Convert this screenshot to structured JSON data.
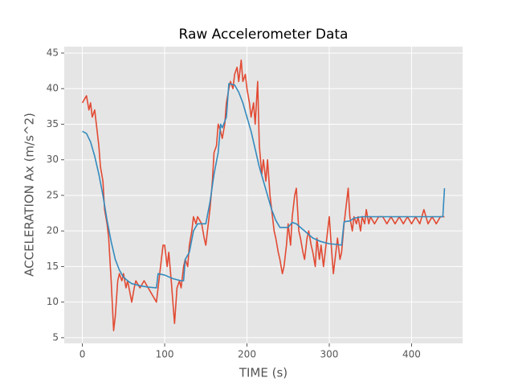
{
  "chart_data": {
    "type": "line",
    "title": "Raw Accelerometer Data",
    "x_label": "TIME (s)",
    "y_label": "ACCELERATION Ax (m/s^2)",
    "xlim": [
      -22,
      462
    ],
    "ylim": [
      4.2,
      45.9
    ],
    "xticks": [
      0,
      100,
      200,
      300,
      400
    ],
    "yticks": [
      5,
      10,
      15,
      20,
      25,
      30,
      35,
      40,
      45
    ],
    "grid": true,
    "background": "#E5E5E5",
    "series": [
      {
        "color": "#E24A33",
        "x": [
          0,
          5,
          8,
          10,
          12,
          15,
          18,
          20,
          22,
          25,
          27,
          30,
          32,
          35,
          38,
          40,
          43,
          45,
          48,
          50,
          53,
          55,
          60,
          63,
          65,
          70,
          75,
          80,
          85,
          90,
          95,
          98,
          100,
          103,
          105,
          108,
          110,
          112,
          115,
          118,
          120,
          123,
          125,
          128,
          130,
          133,
          135,
          138,
          140,
          145,
          148,
          150,
          155,
          158,
          160,
          163,
          165,
          168,
          170,
          173,
          175,
          178,
          180,
          183,
          185,
          188,
          190,
          193,
          195,
          198,
          200,
          203,
          205,
          208,
          210,
          213,
          215,
          218,
          220,
          223,
          225,
          228,
          230,
          233,
          235,
          238,
          240,
          243,
          245,
          248,
          250,
          253,
          255,
          258,
          260,
          263,
          265,
          268,
          270,
          273,
          275,
          278,
          280,
          283,
          285,
          288,
          290,
          293,
          295,
          298,
          300,
          303,
          305,
          308,
          310,
          313,
          315,
          318,
          320,
          323,
          325,
          328,
          330,
          333,
          335,
          338,
          340,
          343,
          345,
          348,
          350,
          355,
          360,
          365,
          370,
          375,
          380,
          385,
          390,
          395,
          400,
          405,
          410,
          415,
          420,
          425,
          430,
          435,
          440
        ],
        "values": [
          38,
          39,
          37,
          38,
          36,
          37,
          34,
          32,
          29,
          27,
          23,
          21,
          19,
          13,
          6,
          8,
          13,
          14,
          13,
          14,
          12,
          13,
          10,
          12,
          13,
          12,
          13,
          12,
          11,
          10,
          15,
          18,
          18,
          15,
          17,
          13,
          10,
          7,
          12,
          13,
          12,
          15,
          16,
          15,
          18,
          20,
          22,
          21,
          22,
          21,
          19,
          18,
          23,
          27,
          31,
          32,
          35,
          34,
          33,
          35,
          38,
          40,
          41,
          40,
          42,
          43,
          41,
          44,
          41,
          42,
          40,
          38,
          36,
          38,
          35,
          41,
          32,
          28,
          30,
          27,
          30,
          25,
          23,
          20,
          19,
          17,
          16,
          14,
          15,
          18,
          21,
          18,
          22,
          25,
          26,
          20,
          19,
          17,
          16,
          19,
          20,
          18,
          17,
          15,
          19,
          16,
          18,
          15,
          17,
          20,
          22,
          17,
          14,
          17,
          19,
          16,
          17,
          21,
          23,
          26,
          22,
          20,
          22,
          21,
          22,
          20,
          22,
          21,
          23,
          21,
          22,
          21,
          22,
          22,
          21,
          22,
          21,
          22,
          21,
          22,
          21,
          22,
          21,
          23,
          21,
          22,
          21,
          22,
          22
        ]
      },
      {
        "color": "#348ABD",
        "x": [
          0,
          5,
          10,
          15,
          20,
          25,
          30,
          35,
          40,
          45,
          50,
          55,
          60,
          70,
          80,
          90,
          92,
          100,
          110,
          120,
          123,
          125,
          130,
          135,
          140,
          145,
          150,
          155,
          160,
          165,
          168,
          170,
          175,
          178,
          185,
          190,
          195,
          200,
          205,
          210,
          215,
          220,
          225,
          230,
          235,
          240,
          245,
          250,
          255,
          260,
          265,
          270,
          280,
          290,
          300,
          310,
          315,
          318,
          325,
          330,
          340,
          360,
          380,
          400,
          420,
          438,
          440
        ],
        "values": [
          34,
          33.7,
          32.5,
          30.5,
          28,
          25,
          21.5,
          18.5,
          16,
          14.5,
          13.5,
          13,
          12.6,
          12.3,
          12.1,
          12,
          14,
          13.8,
          13.3,
          13,
          13,
          16,
          17,
          20,
          21,
          21,
          21,
          24,
          28,
          31,
          35,
          34.5,
          36,
          40.7,
          40.5,
          39.5,
          38,
          36,
          34,
          31.5,
          29,
          27,
          25,
          23,
          21.5,
          20.5,
          20.5,
          20.5,
          21.2,
          21,
          20.5,
          20,
          19,
          18.5,
          18.2,
          18.1,
          18,
          21.3,
          21.4,
          21.8,
          22,
          22,
          22,
          22,
          22,
          22,
          26
        ]
      }
    ]
  }
}
